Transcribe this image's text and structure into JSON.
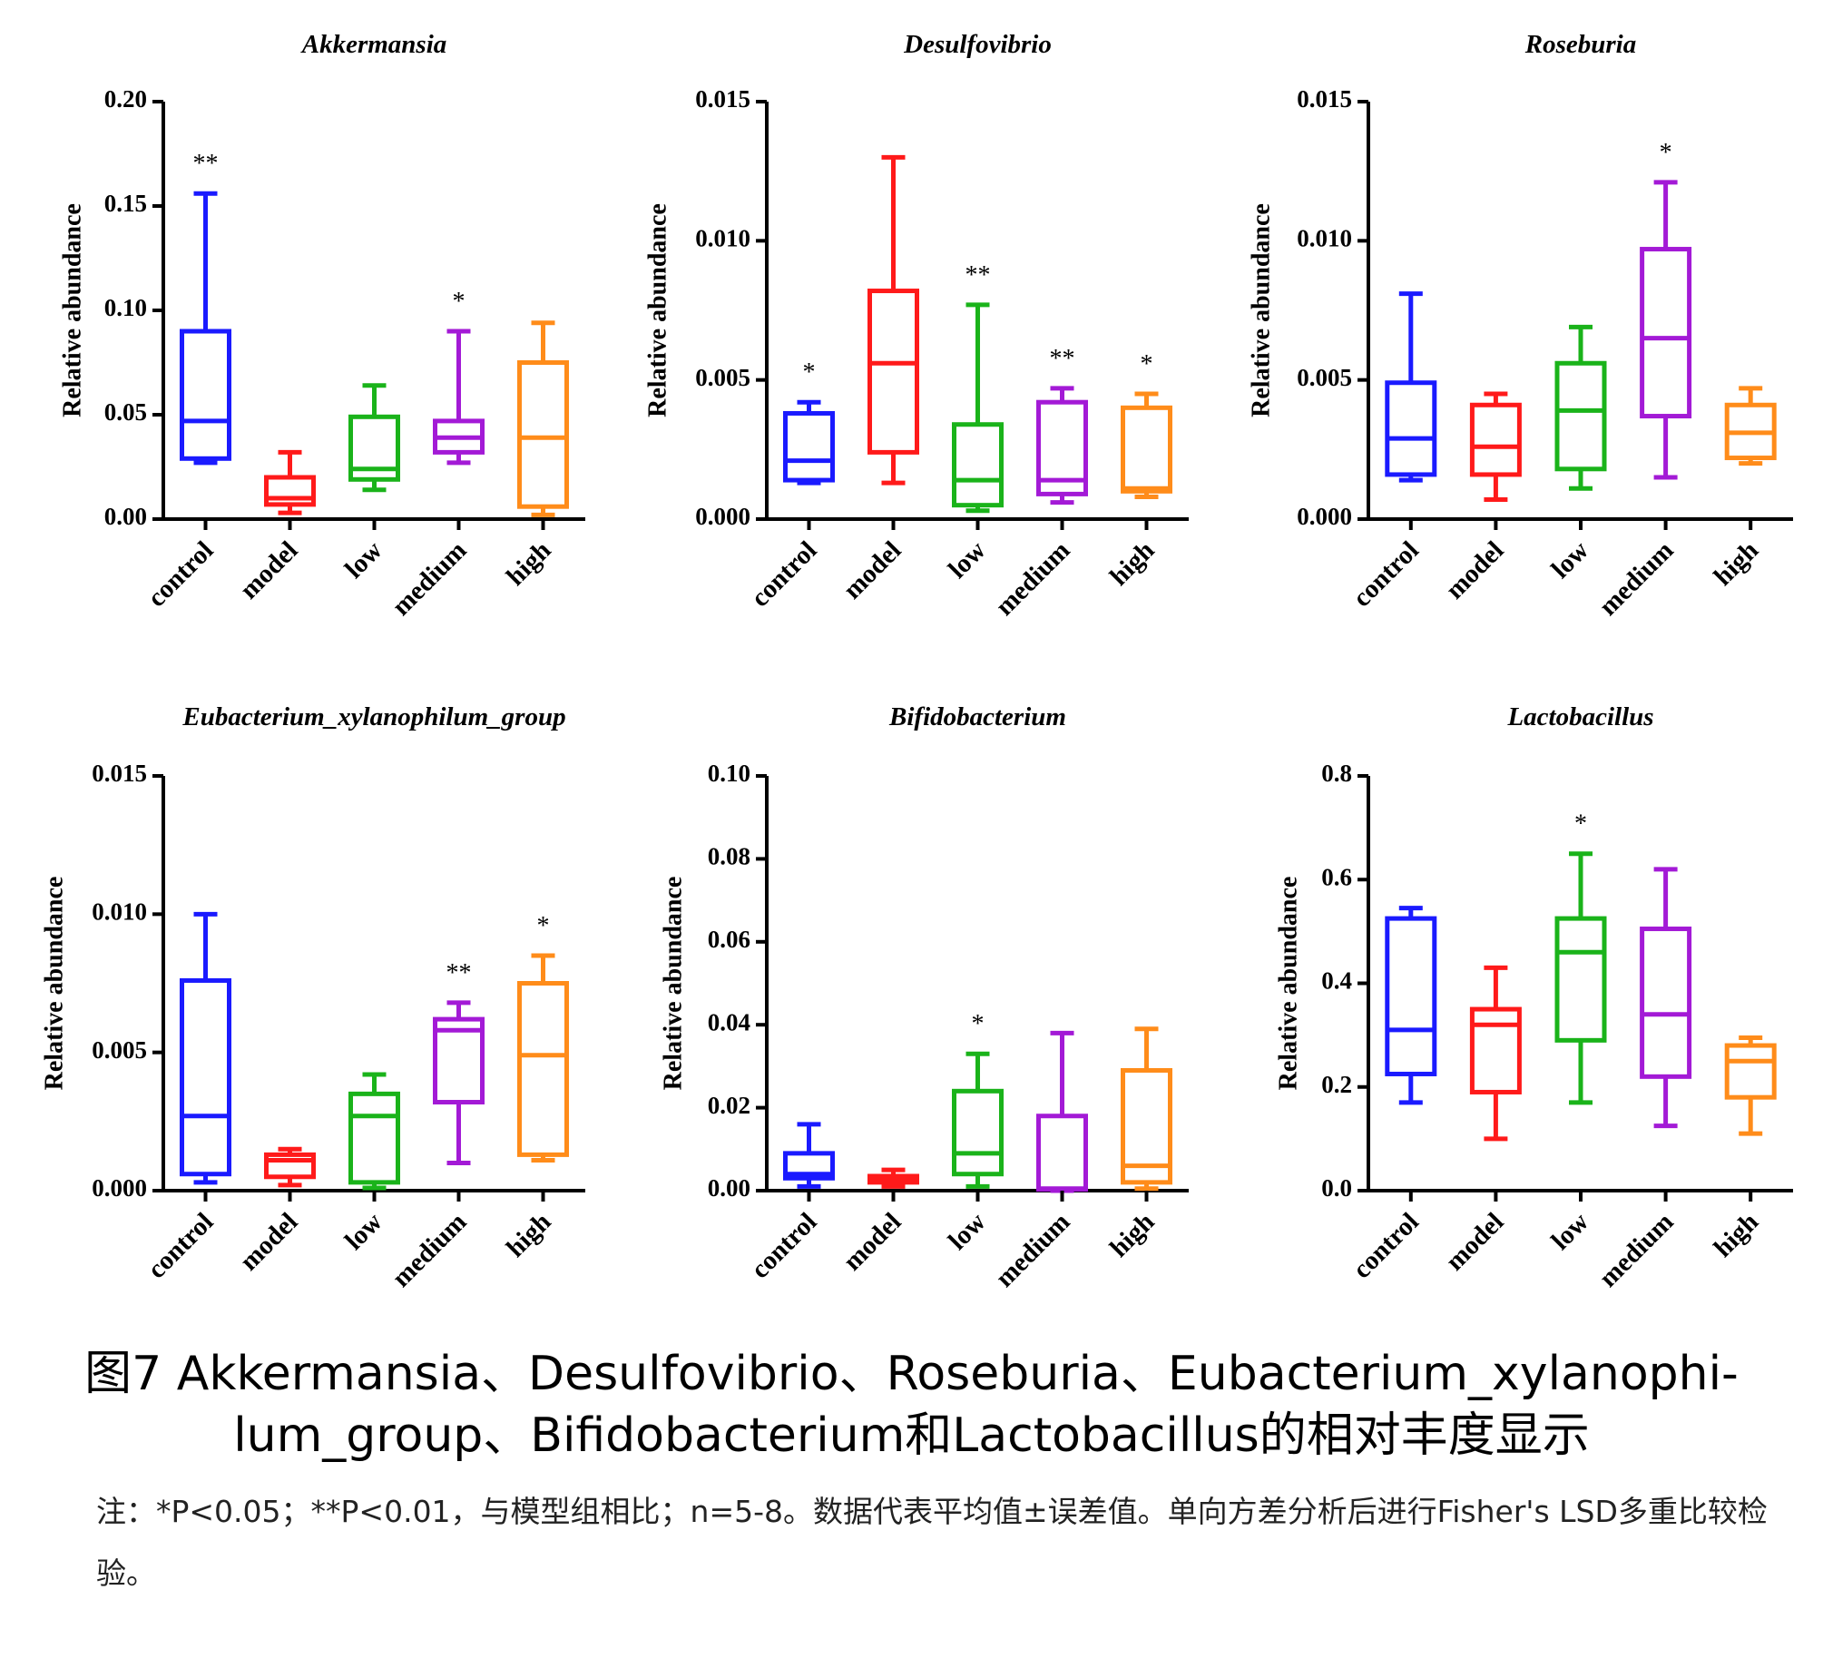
{
  "caption": {
    "line1": "图7 Akkermansia、Desulfovibrio、Roseburia、Eubacterium_xylanophi-",
    "line2": "lum_group、Bifidobacterium和Lactobacillus的相对丰度显示"
  },
  "note": "注：*P<0.05；**P<0.01，与模型组相比；n=5-8。数据代表平均值±误差值。单向方差分析后进行Fisher's LSD多重比较检验。",
  "colors": {
    "control": "#1a1aff",
    "model": "#ff1a1a",
    "low": "#1ab31a",
    "medium": "#a31ad6",
    "high": "#ff8c1a"
  },
  "chart_data": [
    {
      "type": "box",
      "title": "Akkermansia",
      "ylabel": "Relative abundance",
      "ylim": [
        0,
        0.2
      ],
      "yticks": [
        "0.00",
        "0.05",
        "0.10",
        "0.15",
        "0.20"
      ],
      "categories": [
        "control",
        "model",
        "low",
        "medium",
        "high"
      ],
      "boxes": [
        {
          "min": 0.027,
          "q1": 0.029,
          "median": 0.047,
          "q3": 0.09,
          "max": 0.156,
          "sig": "**"
        },
        {
          "min": 0.003,
          "q1": 0.007,
          "median": 0.01,
          "q3": 0.02,
          "max": 0.032,
          "sig": ""
        },
        {
          "min": 0.014,
          "q1": 0.019,
          "median": 0.024,
          "q3": 0.049,
          "max": 0.064,
          "sig": ""
        },
        {
          "min": 0.027,
          "q1": 0.032,
          "median": 0.039,
          "q3": 0.047,
          "max": 0.09,
          "sig": "*"
        },
        {
          "min": 0.002,
          "q1": 0.006,
          "median": 0.039,
          "q3": 0.075,
          "max": 0.094,
          "sig": ""
        }
      ]
    },
    {
      "type": "box",
      "title": "Desulfovibrio",
      "ylabel": "Relative abundance",
      "ylim": [
        0,
        0.015
      ],
      "yticks": [
        "0.000",
        "0.005",
        "0.010",
        "0.015"
      ],
      "categories": [
        "control",
        "model",
        "low",
        "medium",
        "high"
      ],
      "boxes": [
        {
          "min": 0.0013,
          "q1": 0.0014,
          "median": 0.0021,
          "q3": 0.0038,
          "max": 0.0042,
          "sig": "*"
        },
        {
          "min": 0.0013,
          "q1": 0.0024,
          "median": 0.0056,
          "q3": 0.0082,
          "max": 0.013,
          "sig": ""
        },
        {
          "min": 0.0003,
          "q1": 0.0005,
          "median": 0.0014,
          "q3": 0.0034,
          "max": 0.0077,
          "sig": "**"
        },
        {
          "min": 0.0006,
          "q1": 0.0009,
          "median": 0.0014,
          "q3": 0.0042,
          "max": 0.0047,
          "sig": "**"
        },
        {
          "min": 0.0008,
          "q1": 0.001,
          "median": 0.0011,
          "q3": 0.004,
          "max": 0.0045,
          "sig": "*"
        }
      ]
    },
    {
      "type": "box",
      "title": "Roseburia",
      "ylabel": "Relative abundance",
      "ylim": [
        0,
        0.015
      ],
      "yticks": [
        "0.000",
        "0.005",
        "0.010",
        "0.015"
      ],
      "categories": [
        "control",
        "model",
        "low",
        "medium",
        "high"
      ],
      "boxes": [
        {
          "min": 0.0014,
          "q1": 0.0016,
          "median": 0.0029,
          "q3": 0.0049,
          "max": 0.0081,
          "sig": ""
        },
        {
          "min": 0.0007,
          "q1": 0.0016,
          "median": 0.0026,
          "q3": 0.0041,
          "max": 0.0045,
          "sig": ""
        },
        {
          "min": 0.0011,
          "q1": 0.0018,
          "median": 0.0039,
          "q3": 0.0056,
          "max": 0.0069,
          "sig": ""
        },
        {
          "min": 0.0015,
          "q1": 0.0037,
          "median": 0.0065,
          "q3": 0.0097,
          "max": 0.0121,
          "sig": "*"
        },
        {
          "min": 0.002,
          "q1": 0.0022,
          "median": 0.0031,
          "q3": 0.0041,
          "max": 0.0047,
          "sig": ""
        }
      ]
    },
    {
      "type": "box",
      "title": "Eubacterium_xylanophilum_group",
      "ylabel": "Relative abundance",
      "ylim": [
        0,
        0.015
      ],
      "yticks": [
        "0.000",
        "0.005",
        "0.010",
        "0.015"
      ],
      "categories": [
        "control",
        "model",
        "low",
        "medium",
        "high"
      ],
      "boxes": [
        {
          "min": 0.0003,
          "q1": 0.0006,
          "median": 0.0027,
          "q3": 0.0076,
          "max": 0.01,
          "sig": ""
        },
        {
          "min": 0.0002,
          "q1": 0.0005,
          "median": 0.0011,
          "q3": 0.0013,
          "max": 0.0015,
          "sig": ""
        },
        {
          "min": 0.0001,
          "q1": 0.0003,
          "median": 0.0027,
          "q3": 0.0035,
          "max": 0.0042,
          "sig": ""
        },
        {
          "min": 0.001,
          "q1": 0.0032,
          "median": 0.0058,
          "q3": 0.0062,
          "max": 0.0068,
          "sig": "**"
        },
        {
          "min": 0.0011,
          "q1": 0.0013,
          "median": 0.0049,
          "q3": 0.0075,
          "max": 0.0085,
          "sig": "*"
        }
      ]
    },
    {
      "type": "box",
      "title": "Bifidobacterium",
      "ylabel": "Relative abundance",
      "ylim": [
        0,
        0.1
      ],
      "yticks": [
        "0.00",
        "0.02",
        "0.04",
        "0.06",
        "0.08",
        "0.10"
      ],
      "categories": [
        "control",
        "model",
        "low",
        "medium",
        "high"
      ],
      "boxes": [
        {
          "min": 0.001,
          "q1": 0.003,
          "median": 0.004,
          "q3": 0.009,
          "max": 0.016,
          "sig": ""
        },
        {
          "min": 0.001,
          "q1": 0.002,
          "median": 0.003,
          "q3": 0.0035,
          "max": 0.005,
          "sig": ""
        },
        {
          "min": 0.001,
          "q1": 0.004,
          "median": 0.009,
          "q3": 0.024,
          "max": 0.033,
          "sig": "*"
        },
        {
          "min": 0.0,
          "q1": 0.0003,
          "median": 0.0005,
          "q3": 0.018,
          "max": 0.038,
          "sig": ""
        },
        {
          "min": 0.0005,
          "q1": 0.002,
          "median": 0.006,
          "q3": 0.029,
          "max": 0.039,
          "sig": ""
        }
      ]
    },
    {
      "type": "box",
      "title": "Lactobacillus",
      "ylabel": "Relative abundance",
      "ylim": [
        0,
        0.8
      ],
      "yticks": [
        "0.0",
        "0.2",
        "0.4",
        "0.6",
        "0.8"
      ],
      "categories": [
        "control",
        "model",
        "low",
        "medium",
        "high"
      ],
      "boxes": [
        {
          "min": 0.17,
          "q1": 0.225,
          "median": 0.31,
          "q3": 0.525,
          "max": 0.545,
          "sig": ""
        },
        {
          "min": 0.1,
          "q1": 0.19,
          "median": 0.32,
          "q3": 0.35,
          "max": 0.43,
          "sig": ""
        },
        {
          "min": 0.17,
          "q1": 0.29,
          "median": 0.46,
          "q3": 0.525,
          "max": 0.65,
          "sig": "*"
        },
        {
          "min": 0.125,
          "q1": 0.22,
          "median": 0.34,
          "q3": 0.505,
          "max": 0.62,
          "sig": ""
        },
        {
          "min": 0.11,
          "q1": 0.18,
          "median": 0.25,
          "q3": 0.28,
          "max": 0.295,
          "sig": ""
        }
      ]
    }
  ]
}
